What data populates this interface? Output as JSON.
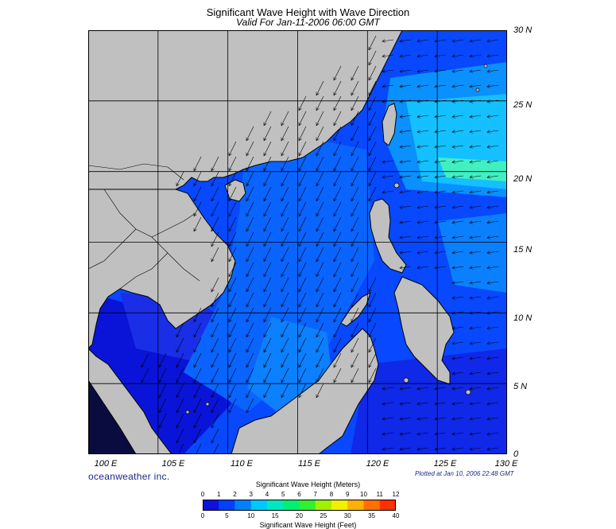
{
  "title": "Significant Wave Height with Wave Direction",
  "subtitle": "Valid For Jan-11-2006 06:00 GMT",
  "brand": "oceanweather inc.",
  "plotted": "Plotted at Jan 10, 2006 22:48 GMT",
  "lat_labels": [
    "30 N",
    "25 N",
    "20 N",
    "15 N",
    "10 N",
    "5 N",
    "0"
  ],
  "lon_labels": [
    "100 E",
    "105 E",
    "110 E",
    "115 E",
    "120 E",
    "125 E",
    "130 E"
  ],
  "legend": {
    "meters_title": "Significant Wave Height (Meters)",
    "feet_title": "Significant Wave Height (Feet)",
    "meters_ticks": [
      "0",
      "1",
      "2",
      "3",
      "4",
      "5",
      "6",
      "7",
      "8",
      "9",
      "10",
      "11",
      "12"
    ],
    "feet_ticks": [
      "0",
      "5",
      "10",
      "15",
      "20",
      "25",
      "30",
      "35",
      "40"
    ],
    "colors": [
      "#1010e0",
      "#0040ff",
      "#0080ff",
      "#00c8ff",
      "#00e8c0",
      "#00f070",
      "#30f030",
      "#a0f000",
      "#f0f000",
      "#ffb000",
      "#ff7000",
      "#ff3000"
    ]
  },
  "map": {
    "lon_range": [
      100,
      130
    ],
    "lat_range": [
      0,
      30
    ],
    "grid_lon": [
      105,
      110,
      115,
      120,
      125
    ],
    "grid_lat": [
      5,
      10,
      15,
      20,
      25
    ],
    "land_color": "#c0c0c0",
    "ocean_colors": {
      "deep": "#0a14d8",
      "main": "#0848ff",
      "mid": "#0a70ff",
      "high": "#10b8ff",
      "peak": "#40f0c0"
    },
    "wave_direction": "from northeast"
  }
}
